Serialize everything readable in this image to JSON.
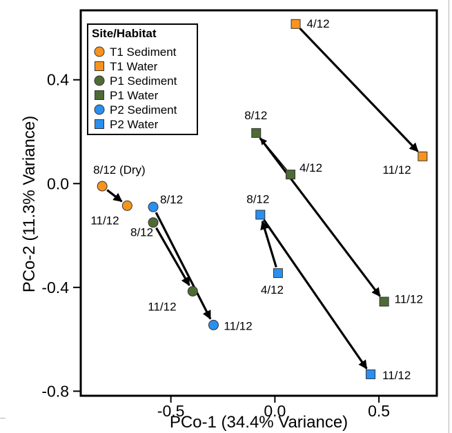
{
  "chart_data": {
    "type": "scatter",
    "xlabel": "PCo-1 (34.4% Variance)",
    "ylabel": "PCo-2 (11.3% Variance)",
    "xlim": [
      -0.93,
      0.775
    ],
    "ylim": [
      -0.815,
      0.665
    ],
    "xticks": [
      {
        "value": -0.5,
        "label": "-0.5"
      },
      {
        "value": 0.0,
        "label": "0.0"
      },
      {
        "value": 0.5,
        "label": "0.5"
      }
    ],
    "yticks": [
      {
        "value": -0.8,
        "label": "-0.8"
      },
      {
        "value": -0.4,
        "label": "-0.4"
      },
      {
        "value": 0.0,
        "label": "0.0"
      },
      {
        "value": 0.4,
        "label": "0.4"
      }
    ],
    "grid": false,
    "legend": {
      "title": "Site/Habitat",
      "position": "top-left",
      "entries": [
        {
          "label": "T1 Sediment",
          "marker": "circle",
          "color": "#f7941d"
        },
        {
          "label": "T1 Water",
          "marker": "square",
          "color": "#f7941d"
        },
        {
          "label": "P1 Sediment",
          "marker": "circle",
          "color": "#4e6b35"
        },
        {
          "label": "P1 Water",
          "marker": "square",
          "color": "#4e6b35"
        },
        {
          "label": "P2 Sediment",
          "marker": "circle",
          "color": "#2b8ff0"
        },
        {
          "label": "P2 Water",
          "marker": "square",
          "color": "#2b8ff0"
        }
      ]
    },
    "points": [
      {
        "id": "t1s-812",
        "series": "T1 Sediment",
        "label": "8/12 (Dry)",
        "x": -0.83,
        "y": -0.01
      },
      {
        "id": "t1s-1112",
        "series": "T1 Sediment",
        "label": "11/12",
        "x": -0.71,
        "y": -0.085
      },
      {
        "id": "t1w-412",
        "series": "T1 Water",
        "label": "4/12",
        "x": 0.1,
        "y": 0.615
      },
      {
        "id": "t1w-1112",
        "series": "T1 Water",
        "label": "11/12",
        "x": 0.71,
        "y": 0.105
      },
      {
        "id": "p1s-812",
        "series": "P1 Sediment",
        "label": "8/12",
        "x": -0.585,
        "y": -0.15
      },
      {
        "id": "p1s-1112",
        "series": "P1 Sediment",
        "label": "11/12",
        "x": -0.395,
        "y": -0.415
      },
      {
        "id": "p1w-812",
        "series": "P1 Water",
        "label": "8/12",
        "x": -0.09,
        "y": 0.195
      },
      {
        "id": "p1w-412",
        "series": "P1 Water",
        "label": "4/12",
        "x": 0.075,
        "y": 0.035
      },
      {
        "id": "p1w-1112",
        "series": "P1 Water",
        "label": "11/12",
        "x": 0.525,
        "y": -0.455
      },
      {
        "id": "p2s-812",
        "series": "P2 Sediment",
        "label": "8/12",
        "x": -0.585,
        "y": -0.09
      },
      {
        "id": "p2s-1112",
        "series": "P2 Sediment",
        "label": "11/12",
        "x": -0.295,
        "y": -0.545
      },
      {
        "id": "p2w-812",
        "series": "P2 Water",
        "label": "8/12",
        "x": -0.07,
        "y": -0.12
      },
      {
        "id": "p2w-412",
        "series": "P2 Water",
        "label": "4/12",
        "x": 0.015,
        "y": -0.345
      },
      {
        "id": "p2w-1112",
        "series": "P2 Water",
        "label": "11/12",
        "x": 0.46,
        "y": -0.735
      }
    ],
    "arrows": [
      {
        "from": "t1s-812",
        "to": "t1s-1112"
      },
      {
        "from": "t1w-412",
        "to": "t1w-1112"
      },
      {
        "from": "p1s-812",
        "to": "p1s-1112"
      },
      {
        "from": "p2s-812",
        "to": "p2s-1112"
      },
      {
        "from": "p1w-412",
        "to": "p1w-812",
        "thin": true
      },
      {
        "from": "p1w-812",
        "to": "p1w-1112"
      },
      {
        "from": "p2w-412",
        "to": "p2w-812"
      },
      {
        "from": "p2w-812",
        "to": "p2w-1112"
      }
    ]
  }
}
